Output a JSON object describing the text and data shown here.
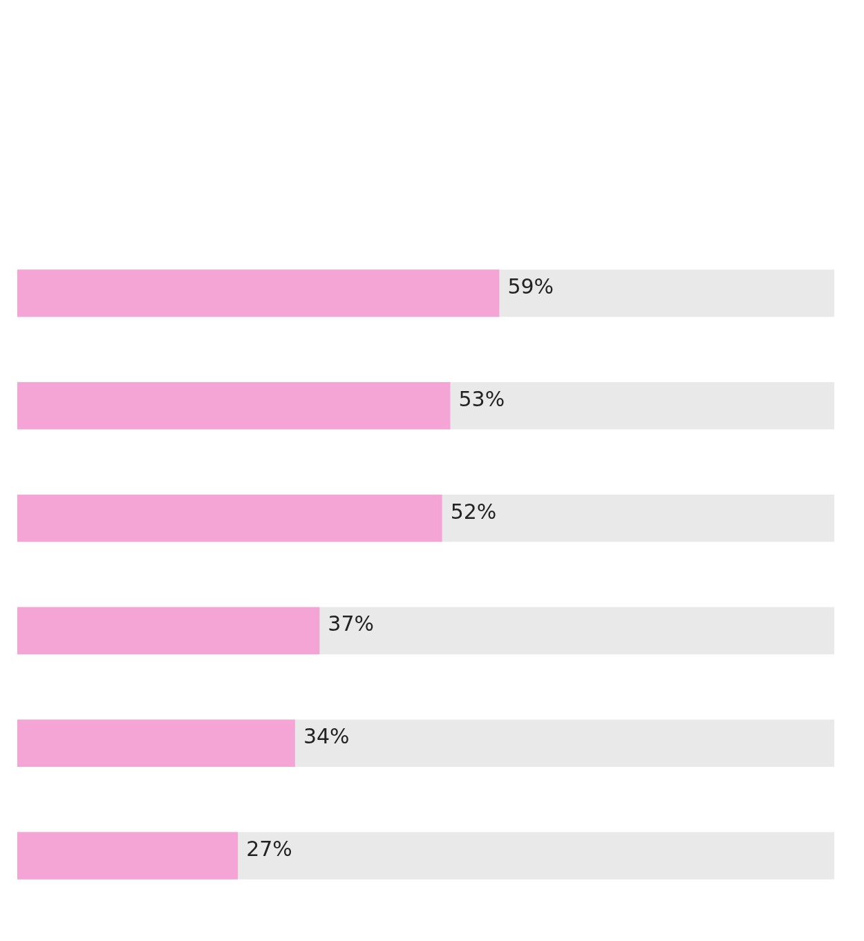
{
  "chart_data": {
    "type": "bar",
    "orientation": "horizontal",
    "categories": [
      null,
      null,
      null,
      null,
      null,
      null
    ],
    "xlim": [
      0,
      100
    ],
    "series": [
      {
        "color": "#f5a5d5",
        "values": [
          59,
          53,
          52,
          37,
          34,
          27
        ],
        "value_labels": [
          "59%",
          "53%",
          "52%",
          "37%",
          "34%",
          "27%"
        ]
      }
    ]
  }
}
